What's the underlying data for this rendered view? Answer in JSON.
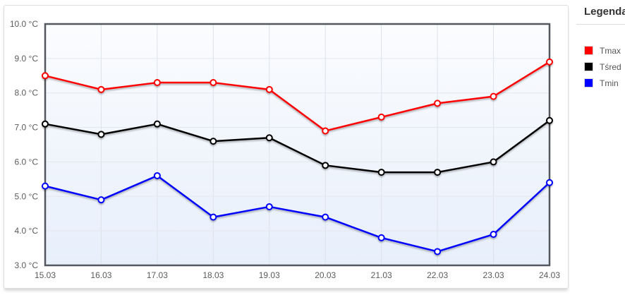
{
  "legend": {
    "title": "Legenda",
    "items": [
      {
        "label": "Tmax",
        "color": "#ff0000"
      },
      {
        "label": "Tśred",
        "color": "#000000"
      },
      {
        "label": "Tmin",
        "color": "#0000ff"
      }
    ]
  },
  "chart_data": {
    "type": "line",
    "title": "",
    "x": [
      "15.03",
      "16.03",
      "17.03",
      "18.03",
      "19.03",
      "20.03",
      "21.03",
      "22.03",
      "23.03",
      "24.03"
    ],
    "series": [
      {
        "name": "Tmax",
        "color": "#ff0000",
        "values": [
          8.5,
          8.1,
          8.3,
          8.3,
          8.1,
          6.9,
          7.3,
          7.7,
          7.9,
          8.9
        ]
      },
      {
        "name": "Tśred",
        "color": "#000000",
        "values": [
          7.1,
          6.8,
          7.1,
          6.6,
          6.7,
          5.9,
          5.7,
          5.7,
          6.0,
          7.2
        ]
      },
      {
        "name": "Tmin",
        "color": "#0000ff",
        "values": [
          5.3,
          4.9,
          5.6,
          4.4,
          4.7,
          4.4,
          3.8,
          3.4,
          3.9,
          5.4
        ]
      }
    ],
    "ylim": [
      3.0,
      10.0
    ],
    "ytick_step": 1.0,
    "ytick_labels": [
      "10.0 °C",
      "9.0 °C",
      "8.0 °C",
      "7.0 °C",
      "6.0 °C",
      "5.0 °C",
      "4.0 °C",
      "3.0 °C"
    ],
    "unit": "°C",
    "grid": true,
    "marker": "circle-open",
    "legend_position": "right"
  }
}
